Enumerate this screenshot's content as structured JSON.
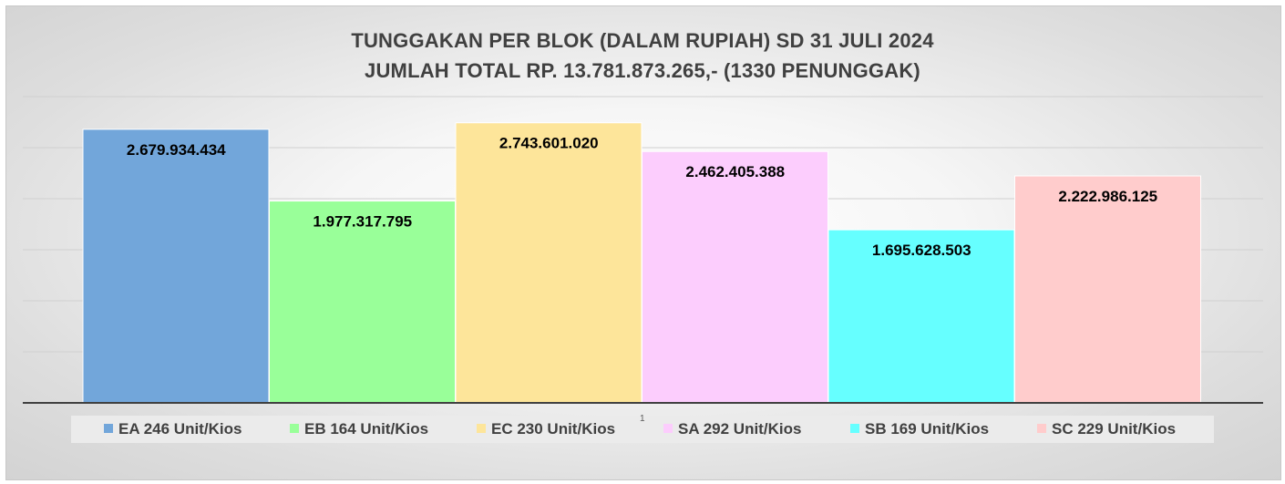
{
  "chart_data": {
    "type": "bar",
    "title": "TUNGGAKAN PER BLOK (DALAM RUPIAH) SD 31 JULI 2024",
    "subtitle": "JUMLAH TOTAL RP. 13.781.873.265,- (1330 PENUNGGAK)",
    "xlabel": "",
    "ylabel": "",
    "ylim": [
      0,
      3000000000
    ],
    "grid": true,
    "legend_position": "bottom",
    "series": [
      {
        "name": "EA 246 Unit/Kios",
        "value": 2679934434,
        "label": "2.679.934.434",
        "color": "#72a6da"
      },
      {
        "name": "EB 164 Unit/Kios",
        "value": 1977317795,
        "label": "1.977.317.795",
        "color": "#99ff99"
      },
      {
        "name": "EC 230 Unit/Kios",
        "value": 2743601020,
        "label": "2.743.601.020",
        "color": "#fde59a"
      },
      {
        "name": "SA 292 Unit/Kios",
        "value": 2462405388,
        "label": "2.462.405.388",
        "color": "#fccdfd"
      },
      {
        "name": "SB 169 Unit/Kios",
        "value": 1695628503,
        "label": "1.695.628.503",
        "color": "#66ffff"
      },
      {
        "name": "SC 229 Unit/Kios",
        "value": 2222986125,
        "label": "2.222.986.125",
        "color": "#ffcccc"
      }
    ]
  },
  "page_number": "1"
}
